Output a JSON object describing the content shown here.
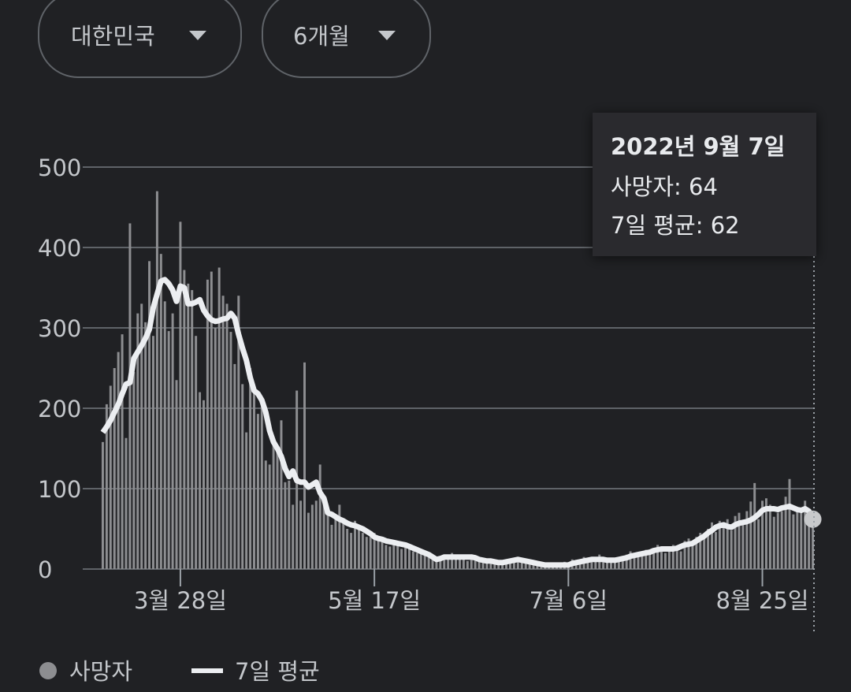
{
  "filters": [
    "대한민국",
    "6개월"
  ],
  "chart_data": {
    "type": "bar-line",
    "categories": [
      null,
      null,
      null,
      null,
      null,
      null,
      null,
      null,
      null,
      null,
      null,
      null,
      null,
      null,
      null,
      null,
      null,
      null,
      null,
      null,
      "3월 28일",
      null,
      null,
      null,
      null,
      null,
      null,
      null,
      null,
      null,
      null,
      null,
      null,
      null,
      null,
      null,
      null,
      null,
      null,
      null,
      null,
      null,
      null,
      null,
      null,
      null,
      null,
      null,
      null,
      null,
      null,
      null,
      null,
      null,
      null,
      null,
      null,
      null,
      null,
      null,
      null,
      null,
      null,
      null,
      null,
      null,
      null,
      null,
      null,
      null,
      "5월 17일",
      null,
      null,
      null,
      null,
      null,
      null,
      null,
      null,
      null,
      null,
      null,
      null,
      null,
      null,
      null,
      null,
      null,
      null,
      null,
      null,
      null,
      null,
      null,
      null,
      null,
      null,
      null,
      null,
      null,
      null,
      null,
      null,
      null,
      null,
      null,
      null,
      null,
      null,
      null,
      null,
      null,
      null,
      null,
      null,
      null,
      null,
      null,
      null,
      null,
      "7월 6일",
      null,
      null,
      null,
      null,
      null,
      null,
      null,
      null,
      null,
      null,
      null,
      null,
      null,
      null,
      null,
      null,
      null,
      null,
      null,
      null,
      null,
      null,
      null,
      null,
      null,
      null,
      null,
      null,
      null,
      null,
      null,
      null,
      null,
      null,
      null,
      null,
      null,
      null,
      null,
      null,
      null,
      null,
      null,
      null,
      null,
      null,
      null,
      null,
      null,
      "8월 25일",
      null,
      null,
      null,
      null,
      null,
      null,
      null,
      null,
      null,
      null,
      null,
      null,
      null
    ],
    "series": [
      {
        "name": "사망자",
        "color": "#8d8e91",
        "values": [
          158,
          205,
          228,
          250,
          270,
          292,
          163,
          430,
          245,
          318,
          330,
          307,
          383,
          290,
          470,
          392,
          333,
          296,
          318,
          235,
          432,
          372,
          355,
          347,
          290,
          220,
          210,
          360,
          370,
          300,
          375,
          340,
          330,
          295,
          255,
          340,
          230,
          170,
          250,
          225,
          193,
          205,
          135,
          130,
          160,
          150,
          185,
          108,
          110,
          80,
          222,
          85,
          257,
          70,
          80,
          85,
          130,
          90,
          75,
          55,
          65,
          80,
          60,
          50,
          45,
          60,
          55,
          45,
          40,
          40,
          45,
          38,
          35,
          30,
          28,
          35,
          32,
          25,
          30,
          28,
          22,
          20,
          25,
          18,
          15,
          12,
          10,
          15,
          18,
          12,
          20,
          18,
          15,
          12,
          10,
          18,
          14,
          10,
          8,
          12,
          10,
          9,
          8,
          6,
          12,
          10,
          9,
          14,
          12,
          8,
          10,
          6,
          5,
          8,
          4,
          6,
          7,
          3,
          5,
          9,
          4,
          12,
          8,
          10,
          15,
          12,
          10,
          14,
          18,
          12,
          9,
          13,
          10,
          15,
          12,
          18,
          22,
          15,
          18,
          20,
          24,
          18,
          22,
          30,
          28,
          20,
          24,
          30,
          26,
          22,
          35,
          38,
          30,
          40,
          45,
          42,
          50,
          58,
          46,
          60,
          55,
          62,
          48,
          66,
          70,
          55,
          72,
          84,
          107,
          62,
          85,
          88,
          80,
          65,
          70,
          72,
          90,
          112,
          68,
          75,
          70,
          85,
          55,
          64
        ]
      },
      {
        "name": "7일 평균",
        "color": "#eceef1",
        "values": [
          170,
          177,
          185,
          195,
          205,
          218,
          230,
          232,
          262,
          270,
          278,
          287,
          298,
          325,
          342,
          358,
          360,
          355,
          347,
          333,
          352,
          350,
          330,
          330,
          332,
          335,
          322,
          315,
          310,
          308,
          309,
          311,
          312,
          318,
          312,
          292,
          275,
          260,
          238,
          222,
          218,
          210,
          195,
          172,
          158,
          150,
          140,
          125,
          115,
          122,
          110,
          108,
          108,
          102,
          105,
          108,
          95,
          88,
          70,
          68,
          65,
          62,
          60,
          57,
          55,
          54,
          52,
          50,
          47,
          44,
          40,
          38,
          37,
          35,
          34,
          33,
          32,
          31,
          30,
          28,
          26,
          24,
          22,
          20,
          18,
          15,
          12,
          13,
          15,
          15,
          15,
          15,
          15,
          15,
          15,
          15,
          14,
          12,
          11,
          10,
          10,
          9,
          8,
          8,
          9,
          10,
          11,
          12,
          11,
          10,
          9,
          8,
          7,
          6,
          5,
          5,
          5,
          5,
          5,
          5,
          5,
          7,
          8,
          9,
          10,
          11,
          12,
          12,
          12,
          12,
          11,
          11,
          11,
          12,
          13,
          14,
          16,
          17,
          18,
          19,
          20,
          21,
          23,
          24,
          25,
          25,
          25,
          25,
          26,
          28,
          30,
          31,
          32,
          35,
          38,
          41,
          45,
          48,
          52,
          54,
          55,
          53,
          52,
          55,
          57,
          58,
          59,
          61,
          64,
          68,
          73,
          75,
          75,
          75,
          74,
          76,
          77,
          78,
          76,
          74,
          73,
          75,
          72,
          62
        ]
      }
    ],
    "ylim": [
      0,
      500
    ],
    "yticks": [
      0,
      100,
      200,
      300,
      400,
      500
    ],
    "grid": true,
    "tooltip": {
      "title": "2022년 9월 7일",
      "lines": [
        "사망자: 64",
        "7일 평균: 62"
      ]
    }
  }
}
